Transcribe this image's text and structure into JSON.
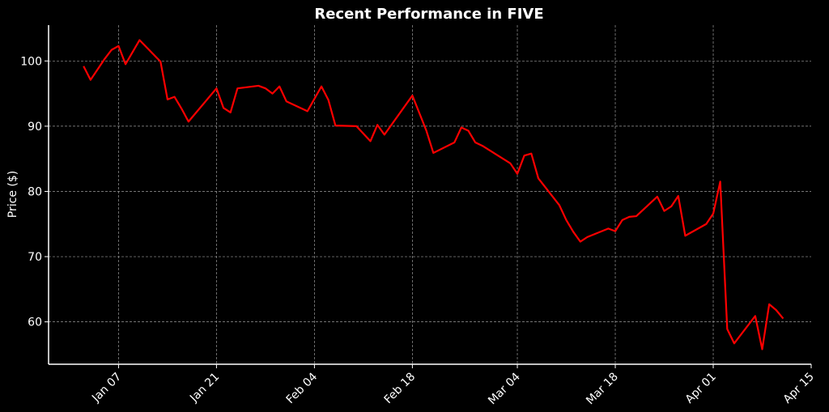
{
  "chart_data": {
    "type": "line",
    "title": "Recent Performance in FIVE",
    "xlabel": "",
    "ylabel": "Price ($)",
    "ylim": [
      53.5,
      105.5
    ],
    "xlim": [
      "2023-12-28",
      "2024-04-15"
    ],
    "grid": true,
    "legend": "none",
    "line_color": "#ff0000",
    "background": "#000000",
    "x_ticks": [
      {
        "date": "2024-01-07",
        "label": "Jan 07"
      },
      {
        "date": "2024-01-21",
        "label": "Jan 21"
      },
      {
        "date": "2024-02-04",
        "label": "Feb 04"
      },
      {
        "date": "2024-02-18",
        "label": "Feb 18"
      },
      {
        "date": "2024-03-04",
        "label": "Mar 04"
      },
      {
        "date": "2024-03-18",
        "label": "Mar 18"
      },
      {
        "date": "2024-04-01",
        "label": "Apr 01"
      },
      {
        "date": "2024-04-15",
        "label": "Apr 15"
      }
    ],
    "y_ticks": [
      60,
      70,
      80,
      90,
      100
    ],
    "series": [
      {
        "x": [
          "2024-01-02",
          "2024-01-03",
          "2024-01-05",
          "2024-01-06",
          "2024-01-07",
          "2024-01-08",
          "2024-01-10",
          "2024-01-13",
          "2024-01-14",
          "2024-01-15",
          "2024-01-16",
          "2024-01-17",
          "2024-01-21",
          "2024-01-22",
          "2024-01-23",
          "2024-01-24",
          "2024-01-27",
          "2024-01-28",
          "2024-01-29",
          "2024-01-30",
          "2024-01-31",
          "2024-02-03",
          "2024-02-05",
          "2024-02-06",
          "2024-02-07",
          "2024-02-10",
          "2024-02-12",
          "2024-02-13",
          "2024-02-14",
          "2024-02-18",
          "2024-02-20",
          "2024-02-21",
          "2024-02-24",
          "2024-02-25",
          "2024-02-26",
          "2024-02-27",
          "2024-02-28",
          "2024-03-03",
          "2024-03-04",
          "2024-03-05",
          "2024-03-06",
          "2024-03-07",
          "2024-03-10",
          "2024-03-11",
          "2024-03-12",
          "2024-03-13",
          "2024-03-14",
          "2024-03-17",
          "2024-03-18",
          "2024-03-19",
          "2024-03-20",
          "2024-03-21",
          "2024-03-24",
          "2024-03-25",
          "2024-03-26",
          "2024-03-27",
          "2024-03-28",
          "2024-03-31",
          "2024-04-01",
          "2024-04-02",
          "2024-04-03",
          "2024-04-04",
          "2024-04-07",
          "2024-04-08",
          "2024-04-09",
          "2024-04-10",
          "2024-04-11"
        ],
        "y": [
          99.2,
          97.1,
          100.3,
          101.7,
          102.3,
          99.5,
          103.2,
          99.9,
          94.1,
          94.5,
          92.7,
          90.7,
          95.8,
          92.8,
          92.1,
          95.8,
          96.2,
          95.8,
          95.0,
          96.1,
          93.8,
          92.3,
          96.1,
          94.0,
          90.1,
          90.0,
          87.7,
          90.2,
          88.7,
          94.7,
          89.3,
          85.9,
          87.5,
          89.8,
          89.3,
          87.5,
          87.0,
          84.3,
          82.7,
          85.5,
          85.8,
          82.0,
          77.9,
          75.6,
          73.8,
          72.3,
          73.0,
          74.3,
          73.9,
          75.6,
          76.1,
          76.2,
          79.2,
          77.0,
          77.7,
          79.3,
          73.2,
          75.0,
          76.6,
          81.5,
          58.9,
          56.7,
          60.9,
          55.8,
          62.7,
          61.8,
          60.5
        ]
      }
    ]
  }
}
